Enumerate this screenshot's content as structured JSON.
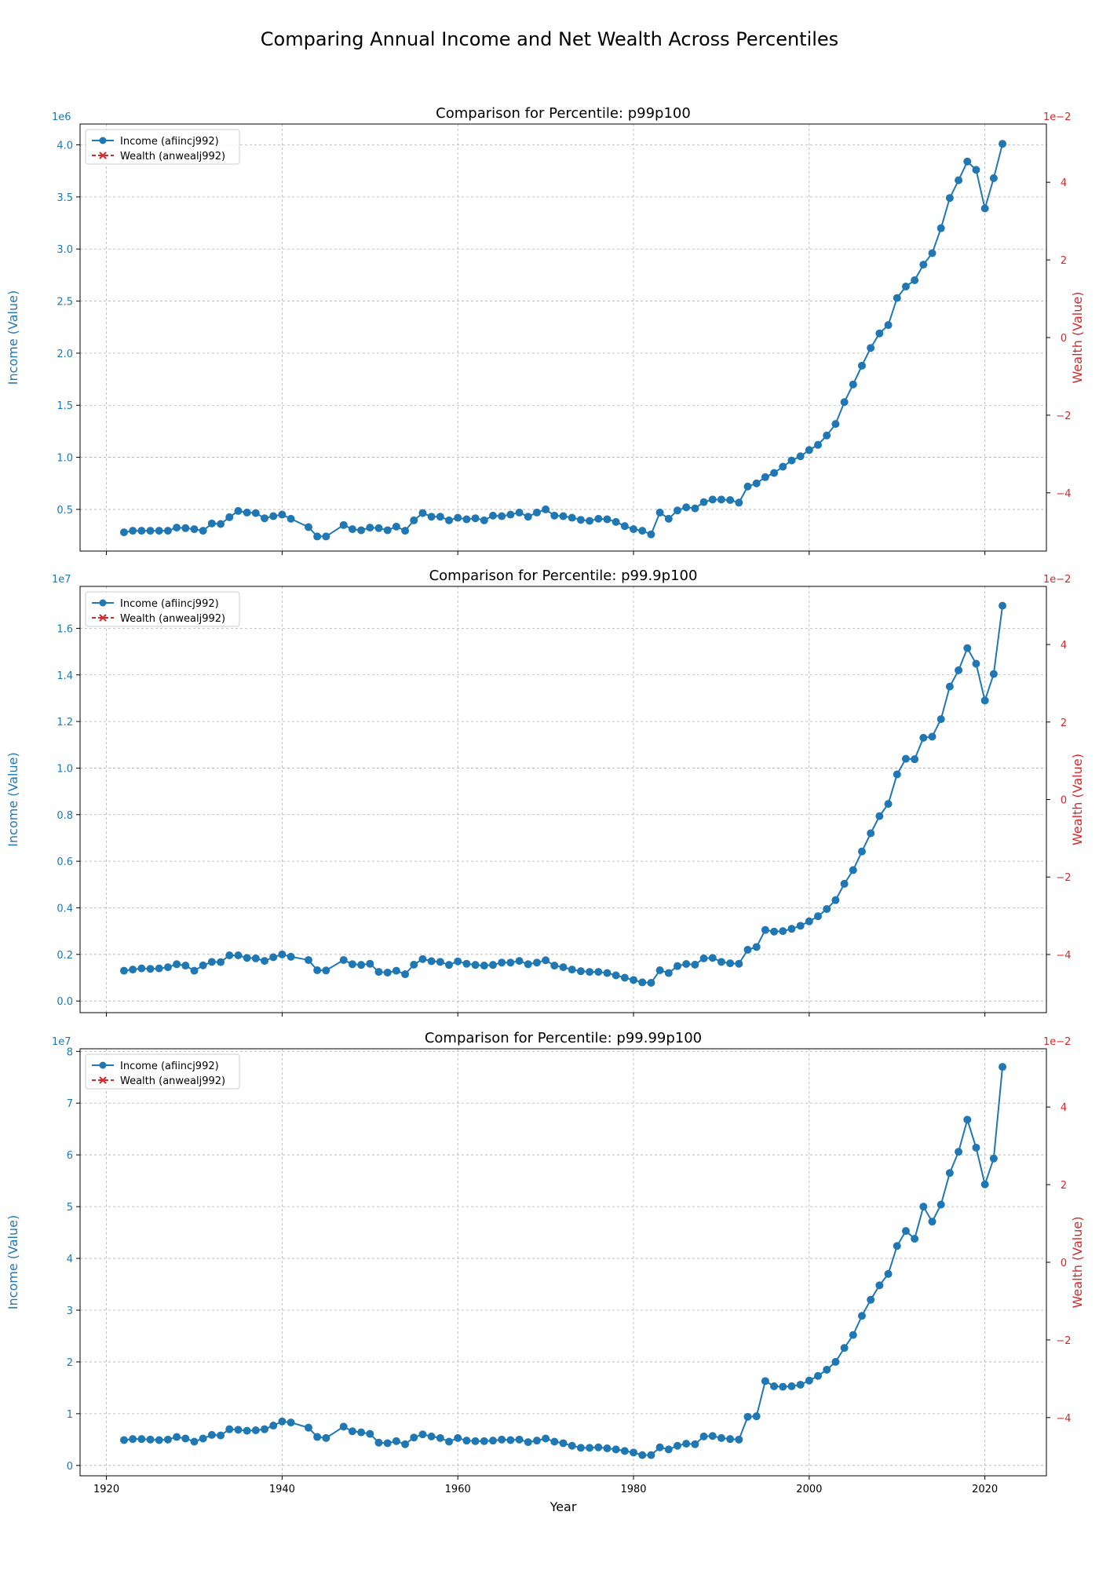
{
  "figure": {
    "title": "Comparing Annual Income and Net Wealth Across Percentiles",
    "colors": {
      "income": "#1f77b4",
      "wealth": "#d62728",
      "grid": "#b0b0b0",
      "axis": "#000000"
    }
  },
  "chart_data": [
    {
      "type": "line",
      "title": "Comparison for Percentile: p99p100",
      "xlabel": "",
      "ylabel": "Income (Value)",
      "y2label": "Wealth (Value)",
      "ylim": [
        100000.0,
        4200000.0
      ],
      "y_ticks": [
        0.5,
        1.0,
        1.5,
        2.0,
        2.5,
        3.0,
        3.5,
        4.0
      ],
      "y_tick_labels": [
        "0.5",
        "1.0",
        "1.5",
        "2.0",
        "2.5",
        "3.0",
        "3.5",
        "4.0"
      ],
      "y_multiplier": "1e6",
      "y_scale": 1000000,
      "y2lim": [
        -5.5,
        5.5
      ],
      "y2_ticks": [
        -4,
        -2,
        0,
        2,
        4
      ],
      "y2_tick_labels": [
        "−4",
        "−2",
        "0",
        "2",
        "4"
      ],
      "y2_multiplier": "1e−2",
      "xlim": [
        1917,
        2027
      ],
      "x_ticks": [
        1920,
        1940,
        1960,
        1980,
        2000,
        2020
      ],
      "x_tick_labels": [
        "",
        "",
        "",
        "",
        "",
        ""
      ],
      "grid": true,
      "legend": "top-left",
      "series": [
        {
          "name": "Income (afiincj992)",
          "axis": "left",
          "marker": "circle",
          "x": [
            1922,
            1923,
            1924,
            1925,
            1926,
            1927,
            1928,
            1929,
            1930,
            1931,
            1932,
            1933,
            1934,
            1935,
            1936,
            1937,
            1938,
            1939,
            1940,
            1941,
            1943,
            1944,
            1945,
            1947,
            1948,
            1949,
            1950,
            1951,
            1952,
            1953,
            1954,
            1955,
            1956,
            1957,
            1958,
            1959,
            1960,
            1961,
            1962,
            1963,
            1964,
            1965,
            1966,
            1967,
            1968,
            1969,
            1970,
            1971,
            1972,
            1973,
            1974,
            1975,
            1976,
            1977,
            1978,
            1979,
            1980,
            1981,
            1982,
            1983,
            1984,
            1985,
            1986,
            1987,
            1988,
            1989,
            1990,
            1991,
            1992,
            1993,
            1994,
            1995,
            1996,
            1997,
            1998,
            1999,
            2000,
            2001,
            2002,
            2003,
            2004,
            2005,
            2006,
            2007,
            2008,
            2009,
            2010,
            2011,
            2012,
            2013,
            2014,
            2015,
            2016,
            2017,
            2018,
            2019,
            2020,
            2021,
            2022
          ],
          "y": [
            280000,
            295000,
            295000,
            295000,
            295000,
            295000,
            325000,
            320000,
            310000,
            295000,
            365000,
            360000,
            425000,
            485000,
            470000,
            465000,
            415000,
            435000,
            450000,
            410000,
            330000,
            240000,
            240000,
            350000,
            310000,
            300000,
            325000,
            320000,
            300000,
            335000,
            295000,
            395000,
            465000,
            430000,
            430000,
            395000,
            420000,
            405000,
            415000,
            395000,
            440000,
            435000,
            450000,
            470000,
            430000,
            470000,
            500000,
            440000,
            435000,
            420000,
            400000,
            390000,
            410000,
            405000,
            380000,
            340000,
            310000,
            295000,
            260000,
            470000,
            410000,
            490000,
            520000,
            510000,
            570000,
            595000,
            595000,
            590000,
            565000,
            720000,
            750000,
            810000,
            850000,
            910000,
            970000,
            1010000,
            1070000,
            1120000,
            1210000,
            1320000,
            1530000,
            1700000,
            1880000,
            2050000,
            2190000,
            2270000,
            2530000,
            2640000,
            2700000,
            2850000,
            2960000,
            3200000,
            3490000,
            3660000,
            3840000,
            3760000,
            3390000,
            3680000,
            4010000
          ]
        },
        {
          "name": "Wealth (anwealj992)",
          "axis": "right",
          "marker": "x",
          "x": [],
          "y": []
        }
      ]
    },
    {
      "type": "line",
      "title": "Comparison for Percentile: p99.9p100",
      "xlabel": "",
      "ylabel": "Income (Value)",
      "y2label": "Wealth (Value)",
      "ylim": [
        -500000.0,
        17800000.0
      ],
      "y_ticks": [
        0.0,
        0.2,
        0.4,
        0.6,
        0.8,
        1.0,
        1.2,
        1.4,
        1.6
      ],
      "y_tick_labels": [
        "0.0",
        "0.2",
        "0.4",
        "0.6",
        "0.8",
        "1.0",
        "1.2",
        "1.4",
        "1.6"
      ],
      "y_multiplier": "1e7",
      "y_scale": 10000000,
      "y2lim": [
        -5.5,
        5.5
      ],
      "y2_ticks": [
        -4,
        -2,
        0,
        2,
        4
      ],
      "y2_tick_labels": [
        "−4",
        "−2",
        "0",
        "2",
        "4"
      ],
      "y2_multiplier": "1e−2",
      "xlim": [
        1917,
        2027
      ],
      "x_ticks": [
        1920,
        1940,
        1960,
        1980,
        2000,
        2020
      ],
      "x_tick_labels": [
        "",
        "",
        "",
        "",
        "",
        ""
      ],
      "grid": true,
      "legend": "top-left",
      "series": [
        {
          "name": "Income (afiincj992)",
          "axis": "left",
          "marker": "circle",
          "x": [
            1922,
            1923,
            1924,
            1925,
            1926,
            1927,
            1928,
            1929,
            1930,
            1931,
            1932,
            1933,
            1934,
            1935,
            1936,
            1937,
            1938,
            1939,
            1940,
            1941,
            1943,
            1944,
            1945,
            1947,
            1948,
            1949,
            1950,
            1951,
            1952,
            1953,
            1954,
            1955,
            1956,
            1957,
            1958,
            1959,
            1960,
            1961,
            1962,
            1963,
            1964,
            1965,
            1966,
            1967,
            1968,
            1969,
            1970,
            1971,
            1972,
            1973,
            1974,
            1975,
            1976,
            1977,
            1978,
            1979,
            1980,
            1981,
            1982,
            1983,
            1984,
            1985,
            1986,
            1987,
            1988,
            1989,
            1990,
            1991,
            1992,
            1993,
            1994,
            1995,
            1996,
            1997,
            1998,
            1999,
            2000,
            2001,
            2002,
            2003,
            2004,
            2005,
            2006,
            2007,
            2008,
            2009,
            2010,
            2011,
            2012,
            2013,
            2014,
            2015,
            2016,
            2017,
            2018,
            2019,
            2020,
            2021,
            2022
          ],
          "y": [
            1300000,
            1350000,
            1400000,
            1380000,
            1400000,
            1450000,
            1580000,
            1520000,
            1300000,
            1530000,
            1680000,
            1670000,
            1960000,
            1960000,
            1850000,
            1830000,
            1720000,
            1880000,
            2000000,
            1900000,
            1760000,
            1320000,
            1310000,
            1760000,
            1580000,
            1550000,
            1600000,
            1250000,
            1220000,
            1300000,
            1150000,
            1560000,
            1800000,
            1710000,
            1680000,
            1550000,
            1700000,
            1600000,
            1550000,
            1520000,
            1550000,
            1650000,
            1650000,
            1720000,
            1580000,
            1650000,
            1750000,
            1520000,
            1450000,
            1350000,
            1280000,
            1250000,
            1250000,
            1200000,
            1100000,
            1000000,
            900000,
            800000,
            780000,
            1320000,
            1200000,
            1500000,
            1590000,
            1560000,
            1830000,
            1850000,
            1680000,
            1620000,
            1600000,
            2200000,
            2320000,
            3050000,
            2980000,
            3000000,
            3100000,
            3230000,
            3420000,
            3640000,
            3950000,
            4330000,
            5030000,
            5620000,
            6420000,
            7200000,
            7940000,
            8460000,
            9730000,
            10400000,
            10380000,
            11300000,
            11350000,
            12100000,
            13500000,
            14200000,
            15150000,
            14480000,
            12900000,
            14040000,
            16970000
          ]
        },
        {
          "name": "Wealth (anwealj992)",
          "axis": "right",
          "marker": "x",
          "x": [],
          "y": []
        }
      ]
    },
    {
      "type": "line",
      "title": "Comparison for Percentile: p99.99p100",
      "xlabel": "Year",
      "ylabel": "Income (Value)",
      "y2label": "Wealth (Value)",
      "ylim": [
        -2000000.0,
        80500000.0
      ],
      "y_ticks": [
        0,
        1,
        2,
        3,
        4,
        5,
        6,
        7,
        8
      ],
      "y_tick_labels": [
        "0",
        "1",
        "2",
        "3",
        "4",
        "5",
        "6",
        "7",
        "8"
      ],
      "y_multiplier": "1e7",
      "y_scale": 10000000,
      "y2lim": [
        -5.5,
        5.5
      ],
      "y2_ticks": [
        -4,
        -2,
        0,
        2,
        4
      ],
      "y2_tick_labels": [
        "−4",
        "−2",
        "0",
        "2",
        "4"
      ],
      "y2_multiplier": "1e−2",
      "xlim": [
        1917,
        2027
      ],
      "x_ticks": [
        1920,
        1940,
        1960,
        1980,
        2000,
        2020
      ],
      "x_tick_labels": [
        "1920",
        "1940",
        "1960",
        "1980",
        "2000",
        "2020"
      ],
      "grid": true,
      "legend": "top-left",
      "series": [
        {
          "name": "Income (afiincj992)",
          "axis": "left",
          "marker": "circle",
          "x": [
            1922,
            1923,
            1924,
            1925,
            1926,
            1927,
            1928,
            1929,
            1930,
            1931,
            1932,
            1933,
            1934,
            1935,
            1936,
            1937,
            1938,
            1939,
            1940,
            1941,
            1943,
            1944,
            1945,
            1947,
            1948,
            1949,
            1950,
            1951,
            1952,
            1953,
            1954,
            1955,
            1956,
            1957,
            1958,
            1959,
            1960,
            1961,
            1962,
            1963,
            1964,
            1965,
            1966,
            1967,
            1968,
            1969,
            1970,
            1971,
            1972,
            1973,
            1974,
            1975,
            1976,
            1977,
            1978,
            1979,
            1980,
            1981,
            1982,
            1983,
            1984,
            1985,
            1986,
            1987,
            1988,
            1989,
            1990,
            1991,
            1992,
            1993,
            1994,
            1995,
            1996,
            1997,
            1998,
            1999,
            2000,
            2001,
            2002,
            2003,
            2004,
            2005,
            2006,
            2007,
            2008,
            2009,
            2010,
            2011,
            2012,
            2013,
            2014,
            2015,
            2016,
            2017,
            2018,
            2019,
            2020,
            2021,
            2022
          ],
          "y": [
            4900000,
            5100000,
            5100000,
            5000000,
            4900000,
            5000000,
            5500000,
            5200000,
            4600000,
            5200000,
            5900000,
            5800000,
            7000000,
            6900000,
            6700000,
            6800000,
            7000000,
            7700000,
            8500000,
            8300000,
            7300000,
            5500000,
            5300000,
            7500000,
            6600000,
            6400000,
            6100000,
            4400000,
            4300000,
            4700000,
            4100000,
            5400000,
            6000000,
            5600000,
            5300000,
            4600000,
            5300000,
            4800000,
            4700000,
            4700000,
            4800000,
            5000000,
            4900000,
            5000000,
            4500000,
            4800000,
            5200000,
            4600000,
            4300000,
            3800000,
            3400000,
            3400000,
            3500000,
            3300000,
            3100000,
            2800000,
            2500000,
            2000000,
            2000000,
            3500000,
            3100000,
            3800000,
            4200000,
            4100000,
            5600000,
            5700000,
            5300000,
            5100000,
            5000000,
            9400000,
            9500000,
            16300000,
            15300000,
            15200000,
            15300000,
            15600000,
            16400000,
            17300000,
            18500000,
            20000000,
            22700000,
            25200000,
            28900000,
            32000000,
            34800000,
            37000000,
            42400000,
            45300000,
            43800000,
            50000000,
            47100000,
            50400000,
            56500000,
            60600000,
            66800000,
            61400000,
            54300000,
            59300000,
            77000000
          ]
        },
        {
          "name": "Wealth (anwealj992)",
          "axis": "right",
          "marker": "x",
          "x": [],
          "y": []
        }
      ]
    }
  ]
}
